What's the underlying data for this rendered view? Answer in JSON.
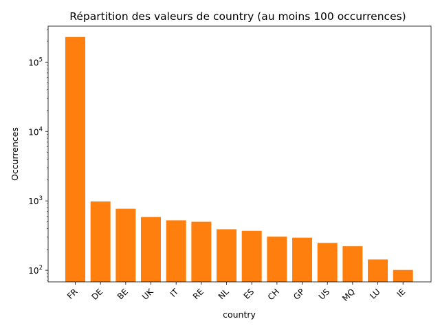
{
  "chart_data": {
    "type": "bar",
    "title": "Répartition des valeurs de country (au moins 100 occurrences)",
    "xlabel": "country",
    "ylabel": "Occurrences",
    "y_scale": "log",
    "ylim": [
      68,
      330000
    ],
    "grid": false,
    "bar_color": "#ff7f0e",
    "categories": [
      "FR",
      "DE",
      "BE",
      "UK",
      "IT",
      "RE",
      "NL",
      "ES",
      "CH",
      "GP",
      "US",
      "MQ",
      "LU",
      "IE"
    ],
    "values": [
      230000,
      980,
      770,
      585,
      525,
      500,
      390,
      370,
      305,
      295,
      248,
      222,
      143,
      101
    ],
    "y_ticks": [
      {
        "value": 100,
        "base": "10",
        "exp": "2"
      },
      {
        "value": 1000,
        "base": "10",
        "exp": "3"
      },
      {
        "value": 10000,
        "base": "10",
        "exp": "4"
      },
      {
        "value": 100000,
        "base": "10",
        "exp": "5"
      }
    ]
  }
}
